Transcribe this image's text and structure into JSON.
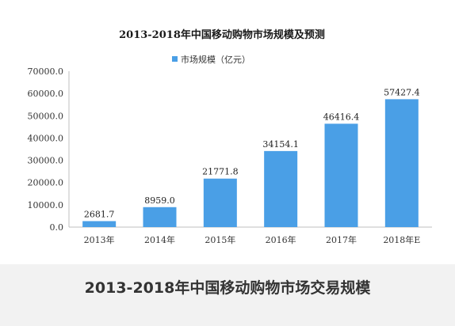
{
  "caption": "2013-2018年中国移动购物市场交易规模",
  "chart_data": {
    "type": "bar",
    "title": "2013-2018年中国移动购物市场规模及预测",
    "categories": [
      "2013年",
      "2014年",
      "2015年",
      "2016年",
      "2017年",
      "2018年E"
    ],
    "series": [
      {
        "name": "市场规模（亿元）",
        "values": [
          2681.7,
          8959.0,
          21771.8,
          34154.1,
          46416.4,
          57427.4
        ],
        "labels": [
          "2681.7",
          "8959.0",
          "21771.8",
          "34154.1",
          "46416.4",
          "57427.4"
        ],
        "color": "#4a9fe6"
      }
    ],
    "ylim": [
      0,
      70000
    ],
    "yticks": [
      "0.0",
      "10000.0",
      "20000.0",
      "30000.0",
      "40000.0",
      "50000.0",
      "60000.0",
      "70000.0"
    ],
    "xlabel": "",
    "ylabel": "",
    "grid": false,
    "legend_position": "top-center"
  }
}
